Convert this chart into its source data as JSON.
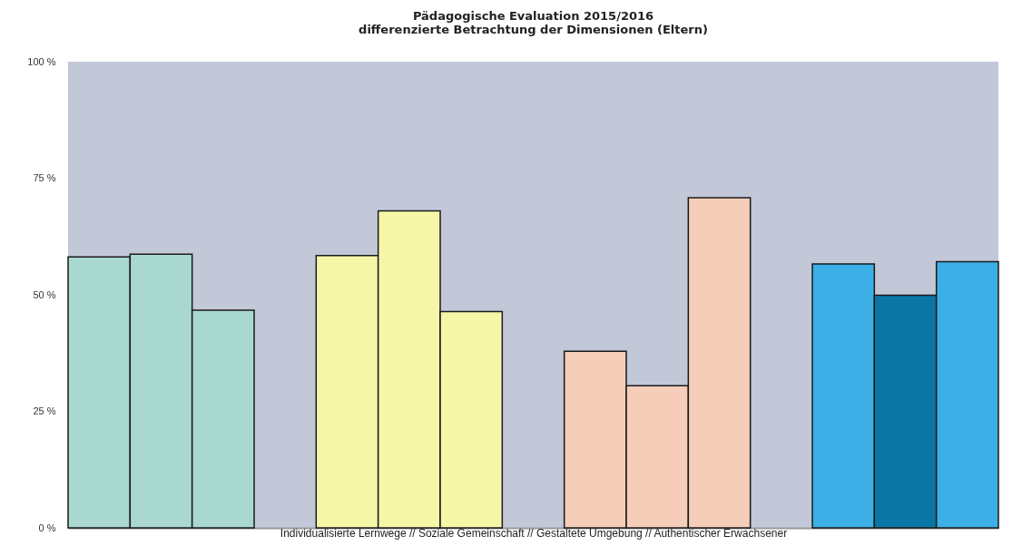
{
  "chart_data": {
    "type": "bar",
    "title": "Pädagogische Evaluation 2015/2016",
    "subtitle": "differenzierte Betrachtung der Dimensionen (Eltern)",
    "xlabel": "Individualisierte Lernwege   //   Soziale Gemeinschaft   //   Gestaltete Umgebung   //   Authentischer Erwachsener",
    "categories": [
      null,
      null,
      null,
      null,
      null,
      null,
      null,
      null,
      null,
      null,
      null,
      null,
      null,
      null,
      null
    ],
    "values": [
      58.1,
      58.7,
      46.7,
      null,
      58.4,
      68.0,
      46.4,
      null,
      37.9,
      30.5,
      70.8,
      null,
      56.6,
      49.9,
      57.1
    ],
    "colors": [
      "#a8d8cf",
      "#a8d8cf",
      "#a8d8cf",
      null,
      "#f6f6a8",
      "#f6f6a8",
      "#f6f6a8",
      null,
      "#f5cdb8",
      "#f5cdb8",
      "#f5cdb8",
      null,
      "#3cb0e6",
      "#0a76a6",
      "#3cb0e6"
    ],
    "ylim": [
      0,
      100
    ],
    "yticks": [
      {
        "value": 0,
        "label": "0 %"
      },
      {
        "value": 25,
        "label": "25 %"
      },
      {
        "value": 50,
        "label": "50 %"
      },
      {
        "value": 75,
        "label": "75 %"
      },
      {
        "value": 100,
        "label": "100 %"
      }
    ],
    "tick_labels": "y",
    "grid": false
  }
}
